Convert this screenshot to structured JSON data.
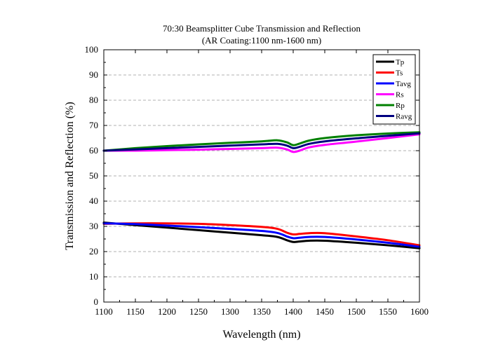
{
  "chart_data": {
    "type": "line",
    "title": "70:30 Beamsplitter Cube Transmission and Reflection",
    "subtitle": "(AR Coating:1100 nm-1600 nm)",
    "xlabel": "Wavelength (nm)",
    "ylabel": "Transmission and Reflection (%)",
    "xlim": [
      1100,
      1600
    ],
    "ylim": [
      0,
      100
    ],
    "x_ticks": [
      1100,
      1150,
      1200,
      1250,
      1300,
      1350,
      1400,
      1450,
      1500,
      1550,
      1600
    ],
    "y_ticks": [
      0,
      10,
      20,
      30,
      40,
      50,
      60,
      70,
      80,
      90,
      100
    ],
    "grid": "horizontal dashed",
    "legend_position": "top-right",
    "x": [
      1100,
      1150,
      1200,
      1250,
      1300,
      1350,
      1375,
      1390,
      1400,
      1410,
      1425,
      1450,
      1500,
      1550,
      1600
    ],
    "series": [
      {
        "name": "Tp",
        "color": "#000000",
        "values": [
          31.5,
          30.5,
          29.5,
          28.5,
          27.5,
          26.5,
          25.8,
          24.5,
          23.8,
          24.0,
          24.3,
          24.3,
          23.5,
          22.5,
          21.3
        ]
      },
      {
        "name": "Ts",
        "color": "#ff0000",
        "values": [
          31.0,
          31.2,
          31.2,
          31.0,
          30.5,
          29.8,
          29.0,
          27.5,
          26.8,
          27.0,
          27.3,
          27.3,
          26.0,
          24.5,
          22.5
        ]
      },
      {
        "name": "Tavg",
        "color": "#0000ff",
        "values": [
          31.2,
          30.9,
          30.3,
          29.7,
          29.0,
          28.2,
          27.4,
          26.0,
          25.3,
          25.5,
          25.8,
          25.8,
          24.8,
          23.5,
          21.9
        ]
      },
      {
        "name": "Rs",
        "color": "#ff00ff",
        "values": [
          60.0,
          60.0,
          60.2,
          60.4,
          60.7,
          61.0,
          61.2,
          60.5,
          59.5,
          60.0,
          61.3,
          62.3,
          63.6,
          65.0,
          66.5
        ]
      },
      {
        "name": "Rp",
        "color": "#008000",
        "values": [
          60.0,
          61.0,
          61.8,
          62.5,
          63.1,
          63.7,
          64.1,
          63.3,
          62.2,
          62.8,
          64.0,
          65.0,
          66.1,
          66.8,
          67.3
        ]
      },
      {
        "name": "Ravg",
        "color": "#000080",
        "values": [
          60.0,
          60.5,
          61.0,
          61.5,
          62.0,
          62.5,
          62.7,
          62.0,
          61.0,
          61.5,
          62.7,
          63.7,
          64.9,
          65.9,
          66.9
        ]
      }
    ]
  }
}
